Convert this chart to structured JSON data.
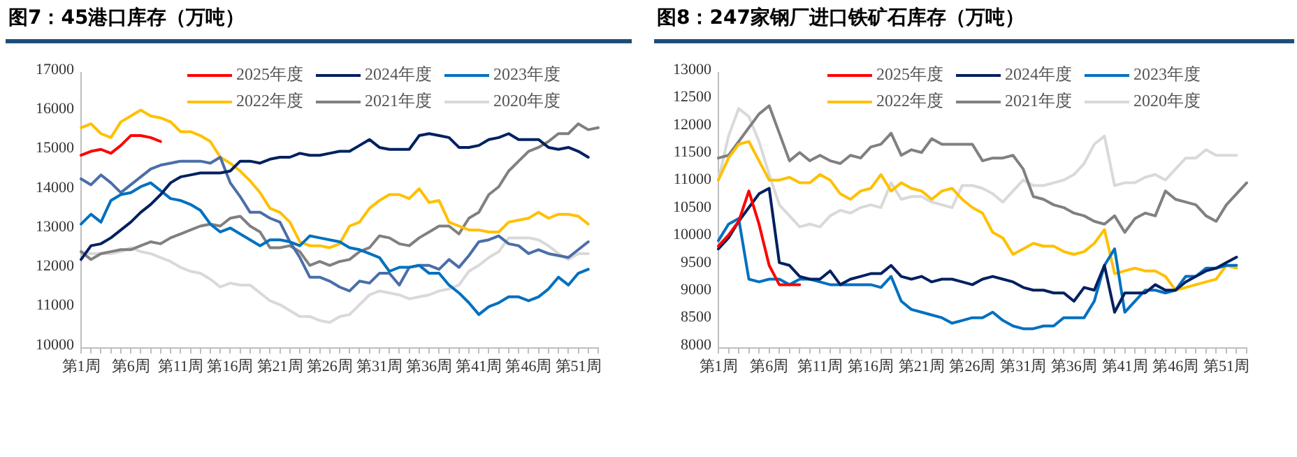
{
  "chart_data": [
    {
      "type": "line",
      "title": "图7：45港口库存（万吨）",
      "categories": [
        "第1周",
        null,
        null,
        null,
        null,
        "第6周",
        null,
        null,
        null,
        null,
        "第11周",
        null,
        null,
        null,
        null,
        "第16周",
        null,
        null,
        null,
        null,
        "第21周",
        null,
        null,
        null,
        null,
        "第26周",
        null,
        null,
        null,
        null,
        "第31周",
        null,
        null,
        null,
        null,
        "第36周",
        null,
        null,
        null,
        null,
        "第41周",
        null,
        null,
        null,
        null,
        "第46周",
        null,
        null,
        null,
        null,
        "第51周",
        null,
        null
      ],
      "ylim": [
        10000,
        17000
      ],
      "yticks": [
        10000,
        11000,
        12000,
        13000,
        14000,
        15000,
        16000,
        17000
      ],
      "grid": false,
      "legend": "top",
      "line_style": "solid",
      "series": [
        {
          "name": "2025年度",
          "color": "#ff0000",
          "values": [
            14900,
            15000,
            15050,
            14950,
            15150,
            15400,
            15400,
            15350,
            15250,
            null,
            null,
            null,
            null,
            null,
            null,
            null,
            null,
            null,
            null,
            null,
            null,
            null,
            null,
            null,
            null,
            null,
            null,
            null,
            null,
            null,
            null,
            null,
            null,
            null,
            null,
            null,
            null,
            null,
            null,
            null,
            null,
            null,
            null,
            null,
            null,
            null,
            null,
            null,
            null,
            null,
            null,
            null,
            null
          ]
        },
        {
          "name": "2024年度",
          "color": "#002060",
          "values": [
            12250,
            12600,
            12650,
            12800,
            13000,
            13200,
            13450,
            13650,
            13900,
            14200,
            14350,
            14400,
            14450,
            14450,
            14450,
            14500,
            14750,
            14750,
            14700,
            14800,
            14850,
            14850,
            14950,
            14900,
            14900,
            14950,
            15000,
            15000,
            15150,
            15300,
            15100,
            15050,
            15050,
            15050,
            15400,
            15450,
            15400,
            15350,
            15100,
            15100,
            15150,
            15300,
            15350,
            15450,
            15300,
            15300,
            15300,
            15100,
            15050,
            15100,
            15000,
            14850,
            null
          ]
        },
        {
          "name": "2023年度",
          "color": "#0070c0",
          "values": [
            13150,
            13400,
            13200,
            13750,
            13900,
            13950,
            14100,
            14200,
            14000,
            13800,
            13750,
            13650,
            13500,
            13150,
            12950,
            13050,
            12900,
            12750,
            12600,
            12750,
            12750,
            12700,
            12600,
            12850,
            12800,
            12750,
            12700,
            12550,
            12500,
            12400,
            12300,
            11950,
            12050,
            12050,
            12100,
            11900,
            11900,
            11600,
            11400,
            11150,
            10850,
            11050,
            11150,
            11300,
            11300,
            11200,
            11300,
            11500,
            11800,
            11600,
            11900,
            12000,
            null
          ]
        },
        {
          "color": "#4a6ea8",
          "values": [
            14300,
            14150,
            14400,
            14200,
            13950,
            14150,
            14350,
            14550,
            14650,
            14700,
            14750,
            14750,
            14750,
            14700,
            14850,
            14200,
            13850,
            13450,
            13450,
            13300,
            13200,
            12700,
            12300,
            11800,
            11800,
            11700,
            11550,
            11450,
            11700,
            11650,
            11900,
            11900,
            11600,
            12050,
            12100,
            12100,
            12000,
            12250,
            12050,
            12350,
            12700,
            12750,
            12850,
            12650,
            12600,
            12400,
            12500,
            12400,
            12350,
            12300,
            12500,
            12700,
            null
          ]
        },
        {
          "name": "2022年度",
          "color": "#ffc000",
          "values": [
            15600,
            15700,
            15450,
            15350,
            15750,
            15900,
            16050,
            15900,
            15850,
            15750,
            15500,
            15500,
            15400,
            15250,
            14850,
            14700,
            14500,
            14250,
            13950,
            13550,
            13450,
            13200,
            12700,
            12600,
            12600,
            12550,
            12650,
            13100,
            13200,
            13550,
            13750,
            13900,
            13900,
            13800,
            14050,
            13700,
            13750,
            13200,
            13100,
            13000,
            13000,
            12950,
            12950,
            13200,
            13250,
            13300,
            13450,
            13300,
            13400,
            13400,
            13350,
            13150,
            null
          ]
        },
        {
          "name": "2021年度",
          "color": "#808080",
          "values": [
            12450,
            12250,
            12400,
            12450,
            12500,
            12500,
            12600,
            12700,
            12650,
            12800,
            12900,
            13000,
            13100,
            13150,
            13100,
            13300,
            13350,
            13100,
            12950,
            12550,
            12550,
            12600,
            12450,
            12100,
            12200,
            12100,
            12200,
            12250,
            12450,
            12550,
            12850,
            12800,
            12650,
            12600,
            12800,
            12950,
            13100,
            13100,
            12900,
            13300,
            13450,
            13900,
            14100,
            14500,
            14750,
            15000,
            15100,
            15250,
            15450,
            15450,
            15700,
            15550,
            15600
          ]
        },
        {
          "name": "2020年度",
          "color": "#d9d9d9",
          "values": [
            12450,
            12400,
            12400,
            12400,
            12450,
            12550,
            12450,
            12400,
            12300,
            12200,
            12050,
            11950,
            11900,
            11750,
            11550,
            11650,
            11600,
            11600,
            11400,
            11200,
            11100,
            10950,
            10800,
            10800,
            10700,
            10650,
            10800,
            10850,
            11100,
            11350,
            11450,
            11400,
            11350,
            11250,
            11300,
            11350,
            11450,
            11500,
            11600,
            11950,
            12100,
            12300,
            12450,
            12800,
            12800,
            12800,
            12750,
            12600,
            12400,
            12250,
            12400,
            12400,
            null
          ]
        }
      ]
    },
    {
      "type": "line",
      "title": "图8：247家钢厂进口铁矿石库存（万吨）",
      "categories": [
        "第1周",
        null,
        null,
        null,
        null,
        "第6周",
        null,
        null,
        null,
        null,
        "第11周",
        null,
        null,
        null,
        null,
        "第16周",
        null,
        null,
        null,
        null,
        "第21周",
        null,
        null,
        null,
        null,
        "第26周",
        null,
        null,
        null,
        null,
        "第31周",
        null,
        null,
        null,
        null,
        "第36周",
        null,
        null,
        null,
        null,
        "第41周",
        null,
        null,
        null,
        null,
        "第46周",
        null,
        null,
        null,
        null,
        "第51周",
        null,
        null
      ],
      "ylim": [
        8000,
        13000
      ],
      "yticks": [
        8000,
        8500,
        9000,
        9500,
        10000,
        10500,
        11000,
        11500,
        12000,
        12500,
        13000
      ],
      "grid": false,
      "legend": "top",
      "line_style": "solid",
      "series": [
        {
          "name": "2025年度",
          "color": "#ff0000",
          "values": [
            9850,
            10050,
            10300,
            10850,
            10250,
            9500,
            9150,
            9150,
            9150,
            null,
            null,
            null,
            null,
            null,
            null,
            null,
            null,
            null,
            null,
            null,
            null,
            null,
            null,
            null,
            null,
            null,
            null,
            null,
            null,
            null,
            null,
            null,
            null,
            null,
            null,
            null,
            null,
            null,
            null,
            null,
            null,
            null,
            null,
            null,
            null,
            null,
            null,
            null,
            null,
            null,
            null,
            null,
            null
          ]
        },
        {
          "name": "2024年度",
          "color": "#002060",
          "values": [
            9800,
            10000,
            10300,
            10550,
            10800,
            10900,
            9550,
            9500,
            9300,
            9250,
            9250,
            9400,
            9150,
            9250,
            9300,
            9350,
            9350,
            9500,
            9300,
            9250,
            9300,
            9200,
            9250,
            9250,
            9200,
            9150,
            9250,
            9300,
            9250,
            9200,
            9100,
            9050,
            9050,
            9000,
            9000,
            8850,
            9100,
            9050,
            9500,
            8650,
            9000,
            9000,
            9000,
            9150,
            9050,
            9050,
            9200,
            9300,
            9400,
            9450,
            9550,
            9650,
            null
          ]
        },
        {
          "name": "2023年度",
          "color": "#0070c0",
          "values": [
            9950,
            10250,
            10350,
            9250,
            9200,
            9250,
            9250,
            9150,
            9250,
            9250,
            9200,
            9150,
            9150,
            9150,
            9150,
            9150,
            9100,
            9300,
            8850,
            8700,
            8650,
            8600,
            8550,
            8450,
            8500,
            8550,
            8550,
            8650,
            8500,
            8400,
            8350,
            8350,
            8400,
            8400,
            8550,
            8550,
            8550,
            8850,
            9500,
            9800,
            8650,
            8850,
            9050,
            9050,
            9000,
            9050,
            9300,
            9300,
            9450,
            9450,
            9500,
            9500,
            null
          ]
        },
        {
          "name": "2022年度",
          "color": "#ffc000",
          "values": [
            11050,
            11450,
            11700,
            11750,
            11400,
            11050,
            11050,
            11100,
            11000,
            11000,
            11150,
            11050,
            10800,
            10700,
            10850,
            10900,
            11150,
            10850,
            11000,
            10900,
            10850,
            10700,
            10850,
            10900,
            10700,
            10550,
            10450,
            10100,
            10000,
            9700,
            9800,
            9900,
            9850,
            9850,
            9750,
            9700,
            9750,
            9900,
            10150,
            9350,
            9400,
            9450,
            9400,
            9400,
            9300,
            9050,
            9100,
            9150,
            9200,
            9250,
            9500,
            9450,
            null
          ]
        },
        {
          "name": "2021年度",
          "color": "#808080",
          "values": [
            11450,
            11500,
            11750,
            12000,
            12250,
            12400,
            11900,
            11400,
            11550,
            11400,
            11500,
            11400,
            11350,
            11500,
            11450,
            11650,
            11700,
            11900,
            11500,
            11600,
            11550,
            11800,
            11700,
            11700,
            11700,
            11700,
            11400,
            11450,
            11450,
            11500,
            11250,
            10750,
            10700,
            10600,
            10550,
            10450,
            10400,
            10300,
            10250,
            10400,
            10100,
            10350,
            10450,
            10400,
            10850,
            10700,
            10650,
            10600,
            10400,
            10300,
            10600,
            10800,
            11000
          ]
        },
        {
          "name": "2020年度",
          "color": "#d9d9d9",
          "values": [
            11050,
            11850,
            12350,
            12200,
            11750,
            11150,
            10600,
            10400,
            10200,
            10250,
            10200,
            10400,
            10500,
            10450,
            10550,
            10600,
            10550,
            11000,
            10700,
            10750,
            10750,
            10650,
            10600,
            10550,
            10950,
            10950,
            10900,
            10800,
            10650,
            10850,
            11050,
            10950,
            10950,
            11000,
            11050,
            11150,
            11350,
            11700,
            11850,
            10950,
            11000,
            11000,
            11100,
            11150,
            11050,
            11250,
            11450,
            11450,
            11600,
            11500,
            11500,
            11500,
            null
          ]
        }
      ]
    }
  ]
}
